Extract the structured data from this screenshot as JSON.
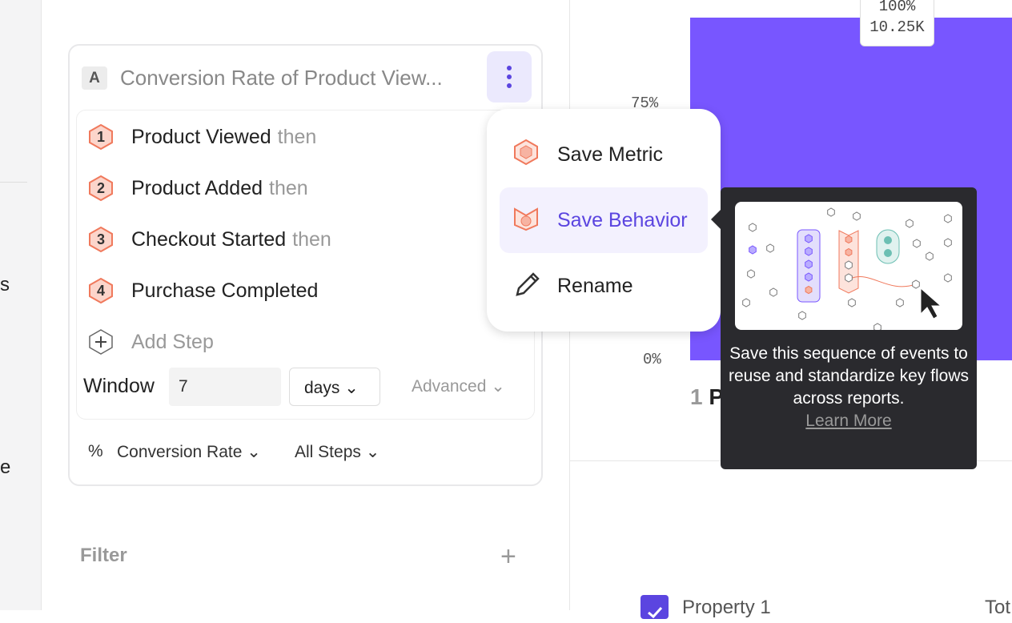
{
  "sidebar": {
    "partial_labels": [
      "s",
      "e"
    ]
  },
  "metric": {
    "badge": "A",
    "title": "Conversion Rate of Product View..."
  },
  "steps": [
    {
      "num": "1",
      "name": "Product Viewed",
      "suffix": "then"
    },
    {
      "num": "2",
      "name": "Product Added",
      "suffix": "then"
    },
    {
      "num": "3",
      "name": "Checkout Started",
      "suffix": "then"
    },
    {
      "num": "4",
      "name": "Purchase Completed",
      "suffix": ""
    }
  ],
  "add_step": "Add Step",
  "window": {
    "label": "Window",
    "value": "7",
    "unit": "days",
    "advanced": "Advanced"
  },
  "footer": {
    "symbol": "%",
    "measure": "Conversion Rate",
    "steps": "All Steps"
  },
  "filter": {
    "label": "Filter",
    "add": "+"
  },
  "menu": {
    "items": [
      {
        "label": "Save Metric"
      },
      {
        "label": "Save Behavior",
        "selected": true
      },
      {
        "label": "Rename"
      }
    ]
  },
  "tooltip": {
    "text": "Save this sequence of events to reuse and standardize key flows across reports.",
    "link": "Learn More"
  },
  "chart": {
    "bar_pct": "100%",
    "bar_count": "10.25K",
    "y_ticks": [
      "75%",
      "0%"
    ],
    "x_label_num": "1",
    "x_label_text": "P",
    "accent": "#7856ff"
  },
  "legend": {
    "property": "Property 1",
    "total": "Tot"
  }
}
